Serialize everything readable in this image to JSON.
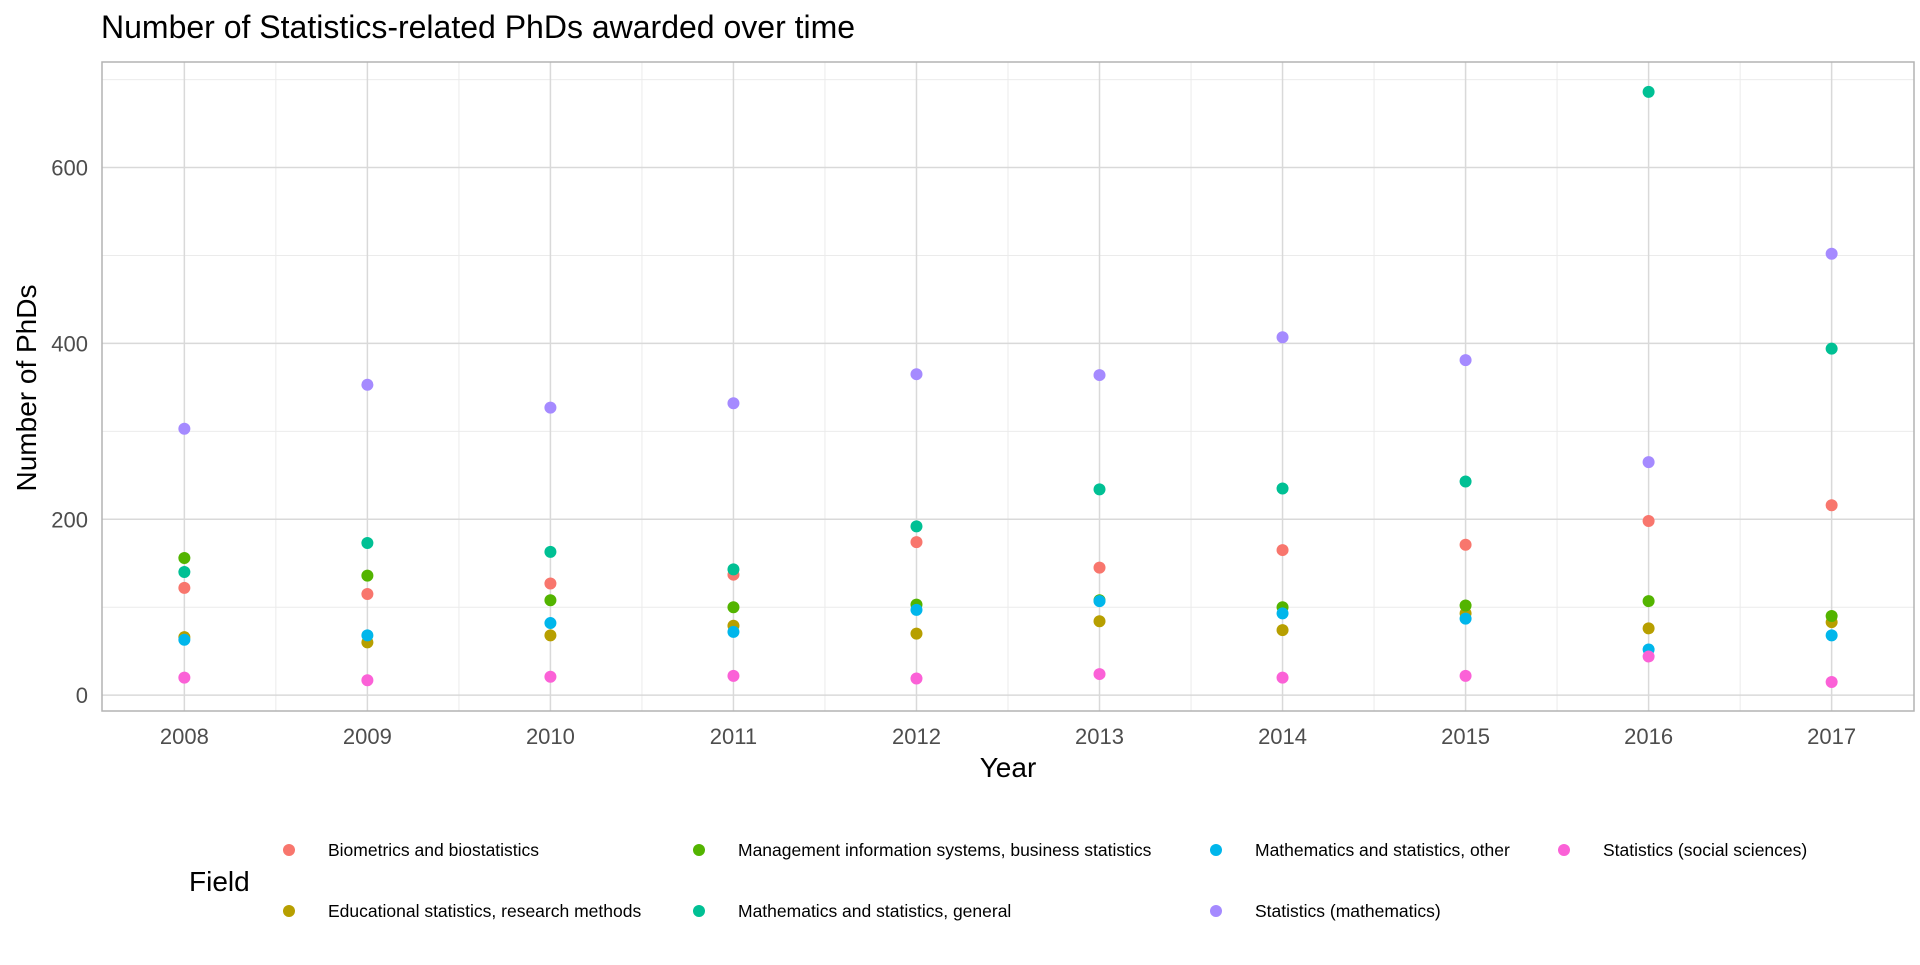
{
  "chart_data": {
    "type": "scatter",
    "title": "Number of Statistics-related PhDs awarded over time",
    "xlabel": "Year",
    "ylabel": "Number of PhDs",
    "x": [
      2008,
      2009,
      2010,
      2011,
      2012,
      2013,
      2014,
      2015,
      2016,
      2017
    ],
    "ylim": [
      -18,
      720
    ],
    "y_ticks": [
      0,
      200,
      400,
      600
    ],
    "grid": true,
    "legend": {
      "title": "Field",
      "placement": "bottom"
    },
    "series": [
      {
        "name": "Biometrics and biostatistics",
        "color": "#F8766D",
        "values": [
          122,
          115,
          127,
          137,
          174,
          145,
          165,
          171,
          198,
          216
        ]
      },
      {
        "name": "Educational statistics, research methods",
        "color": "#B79F00",
        "values": [
          66,
          60,
          68,
          79,
          70,
          84,
          74,
          93,
          76,
          83
        ]
      },
      {
        "name": "Management information systems, business statistics",
        "color": "#53B400",
        "values": [
          156,
          136,
          108,
          100,
          103,
          108,
          100,
          102,
          107,
          90
        ]
      },
      {
        "name": "Mathematics and statistics, general",
        "color": "#00C094",
        "values": [
          140,
          173,
          163,
          143,
          192,
          234,
          235,
          243,
          686,
          394
        ]
      },
      {
        "name": "Mathematics and statistics, other",
        "color": "#00B6EB",
        "values": [
          63,
          68,
          82,
          72,
          97,
          107,
          93,
          87,
          52,
          68
        ]
      },
      {
        "name": "Statistics (mathematics)",
        "color": "#A58AFF",
        "values": [
          303,
          353,
          327,
          332,
          365,
          364,
          407,
          381,
          265,
          502
        ]
      },
      {
        "name": "Statistics (social sciences)",
        "color": "#FB61D7",
        "values": [
          20,
          17,
          21,
          22,
          19,
          24,
          20,
          22,
          44,
          15
        ]
      }
    ]
  }
}
